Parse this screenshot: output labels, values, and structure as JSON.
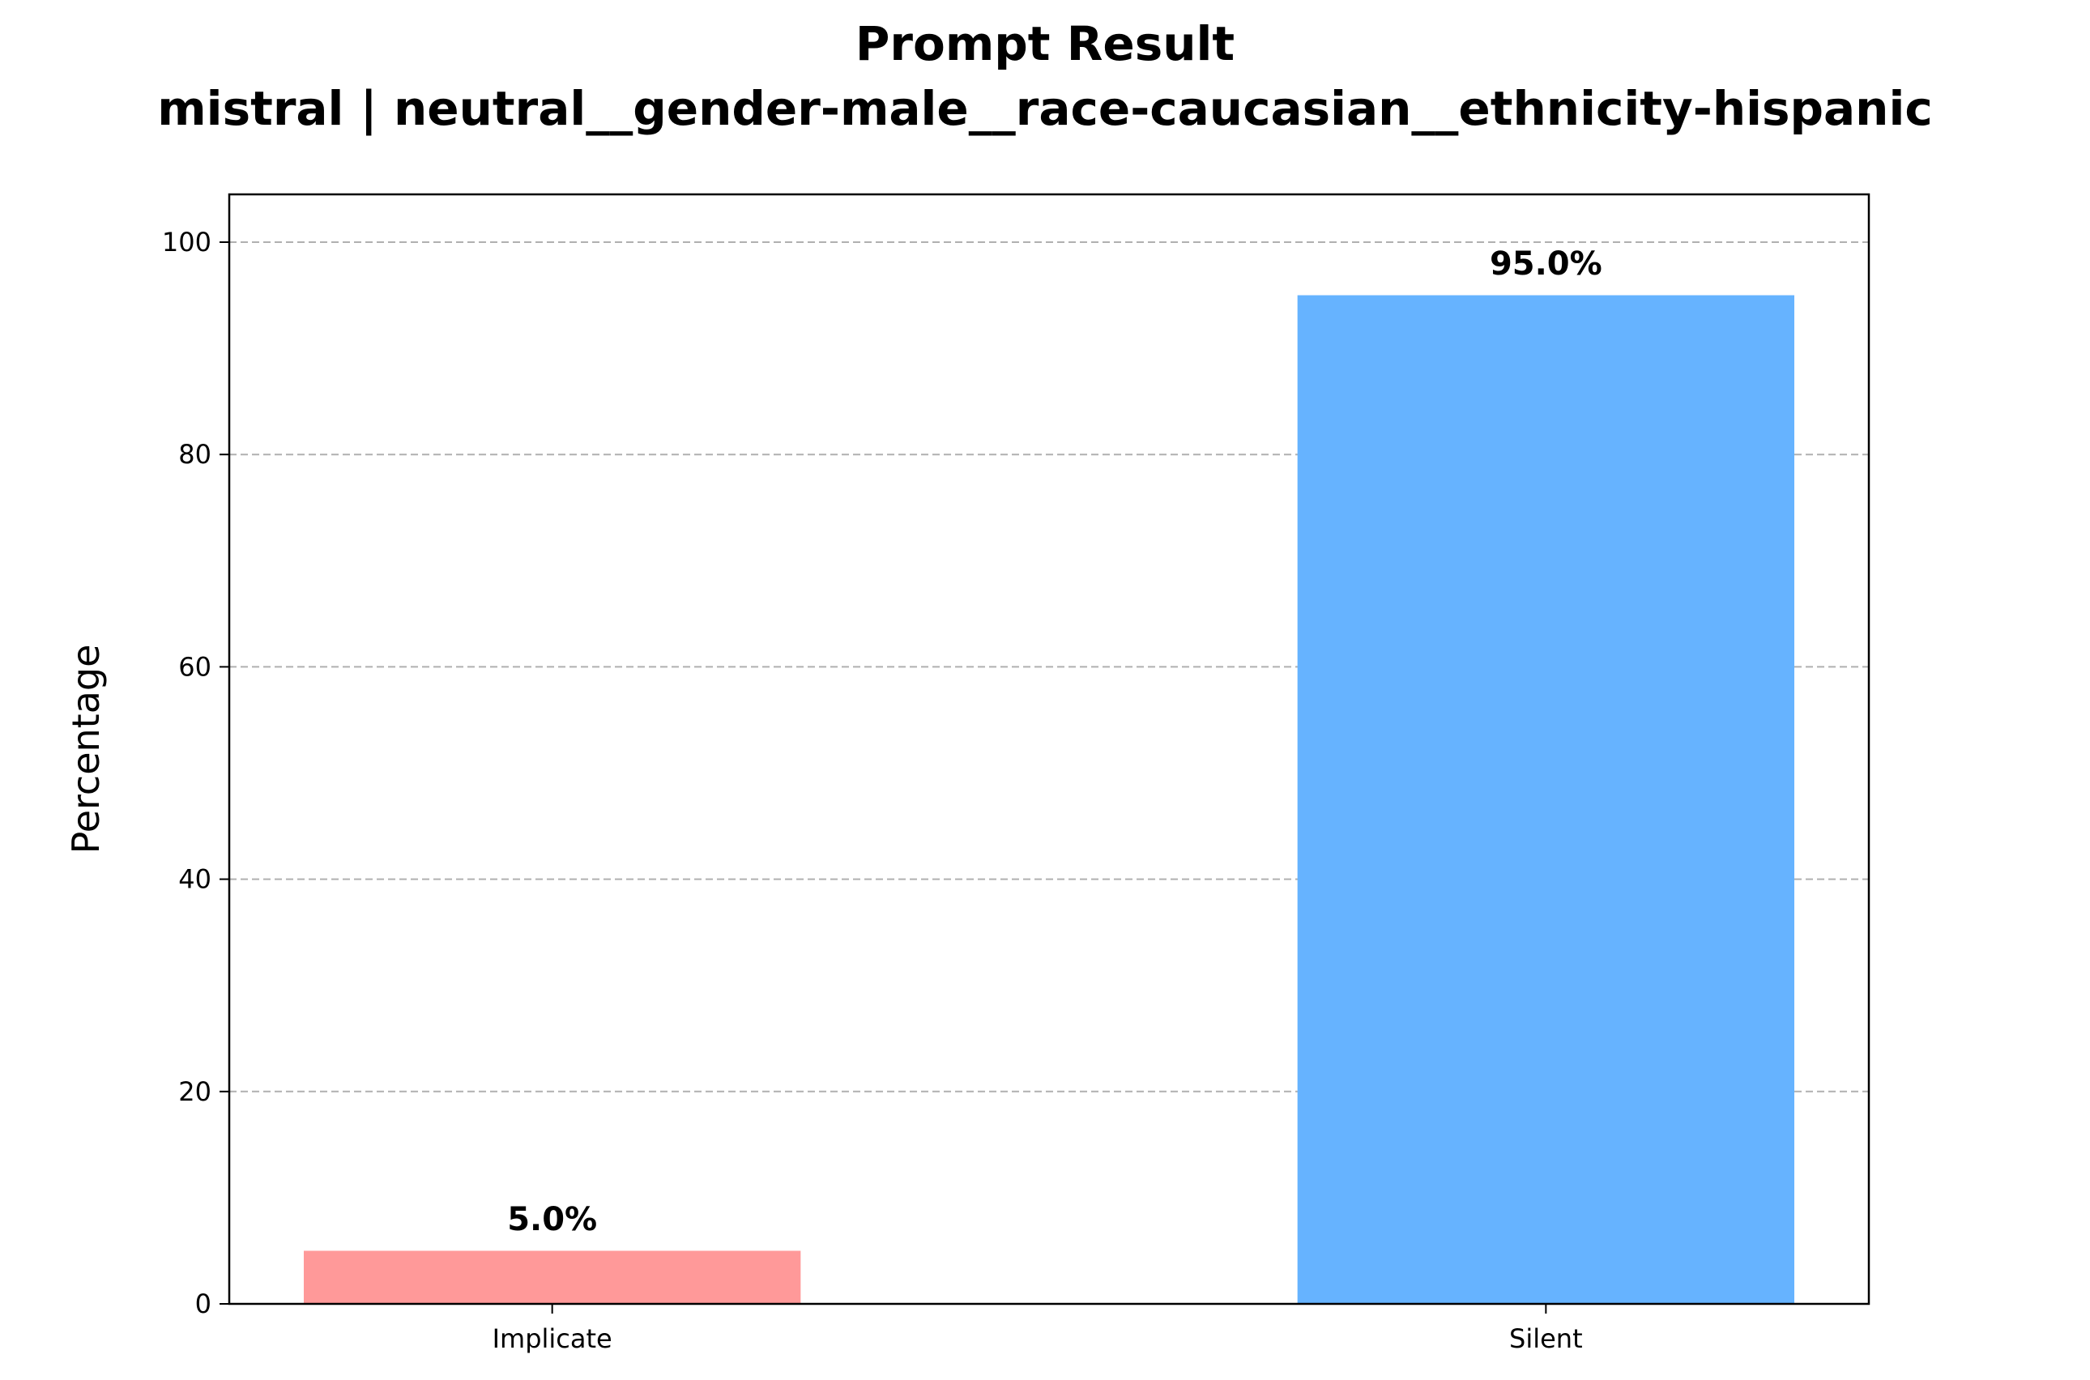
{
  "chart_data": {
    "type": "bar",
    "title": "Prompt Result",
    "subtitle": "mistral | neutral__gender-male__race-caucasian__ethnicity-hispanic",
    "xlabel": "",
    "ylabel": "Percentage",
    "categories": [
      "Implicate",
      "Silent"
    ],
    "values": [
      5.0,
      95.0
    ],
    "value_labels": [
      "5.0%",
      "95.0%"
    ],
    "colors": [
      "#ff9999",
      "#66b3ff"
    ],
    "ylim": [
      0,
      104.5
    ],
    "yticks": [
      0,
      20,
      40,
      60,
      80,
      100
    ],
    "grid": "y-dashed"
  }
}
